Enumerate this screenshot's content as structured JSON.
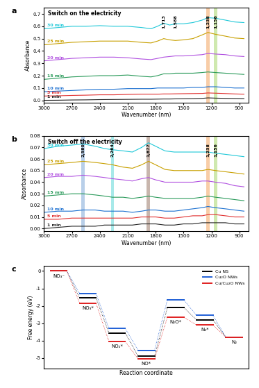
{
  "chart_data": [
    {
      "type": "line",
      "panel_label": "a",
      "title": "Switch on the electricity",
      "x_label": "Wavenumber (nm)",
      "y_label": "Absorbance",
      "xlim": [
        3000,
        800
      ],
      "xticks": [
        3000,
        2700,
        2400,
        2100,
        1800,
        1500,
        1200,
        900
      ],
      "ylim": [
        -0.02,
        0.75
      ],
      "yticks": [
        {
          "value": 0,
          "label": "0.0"
        },
        0.1,
        0.2,
        0.3,
        0.4,
        0.5,
        0.6,
        0.7
      ],
      "x": [
        3000,
        2850,
        2700,
        2550,
        2400,
        2250,
        2100,
        1950,
        1850,
        1780,
        1713,
        1650,
        1588,
        1500,
        1400,
        1300,
        1238,
        1156,
        1050,
        950,
        850
      ],
      "series": [
        {
          "name": "30 min",
          "color": "#1fc8d8",
          "values": [
            0.58,
            0.59,
            0.6,
            0.6,
            0.605,
            0.6,
            0.6,
            0.59,
            0.58,
            0.6,
            0.625,
            0.61,
            0.62,
            0.62,
            0.63,
            0.65,
            0.67,
            0.665,
            0.65,
            0.635,
            0.63
          ]
        },
        {
          "name": "25 min",
          "color": "#c8a000",
          "values": [
            0.45,
            0.46,
            0.47,
            0.475,
            0.48,
            0.48,
            0.48,
            0.47,
            0.465,
            0.48,
            0.5,
            0.49,
            0.485,
            0.49,
            0.5,
            0.53,
            0.55,
            0.535,
            0.52,
            0.505,
            0.5
          ]
        },
        {
          "name": "20 min",
          "color": "#b050e0",
          "values": [
            0.32,
            0.33,
            0.34,
            0.345,
            0.35,
            0.35,
            0.345,
            0.335,
            0.33,
            0.34,
            0.35,
            0.355,
            0.36,
            0.36,
            0.365,
            0.37,
            0.38,
            0.375,
            0.37,
            0.36,
            0.355
          ]
        },
        {
          "name": "15 min",
          "color": "#2a9a5a",
          "values": [
            0.17,
            0.18,
            0.19,
            0.195,
            0.2,
            0.2,
            0.205,
            0.195,
            0.19,
            0.2,
            0.215,
            0.215,
            0.22,
            0.22,
            0.22,
            0.225,
            0.23,
            0.225,
            0.22,
            0.215,
            0.21
          ]
        },
        {
          "name": "10 min",
          "color": "#1a6fd0",
          "values": [
            0.07,
            0.075,
            0.08,
            0.085,
            0.09,
            0.09,
            0.095,
            0.095,
            0.095,
            0.1,
            0.1,
            0.1,
            0.1,
            0.1,
            0.105,
            0.105,
            0.11,
            0.11,
            0.105,
            0.1,
            0.1
          ]
        },
        {
          "name": "5 min",
          "color": "#e03030",
          "values": [
            0.035,
            0.037,
            0.04,
            0.042,
            0.045,
            0.045,
            0.048,
            0.05,
            0.05,
            0.05,
            0.052,
            0.052,
            0.053,
            0.054,
            0.055,
            0.056,
            0.06,
            0.058,
            0.055,
            0.052,
            0.05
          ]
        },
        {
          "name": "1 min",
          "color": "#222222",
          "values": [
            0.0,
            0.001,
            0.003,
            0.004,
            0.006,
            0.007,
            0.008,
            0.009,
            0.009,
            0.01,
            0.011,
            0.011,
            0.012,
            0.013,
            0.014,
            0.016,
            0.02,
            0.018,
            0.016,
            0.015,
            0.014
          ]
        }
      ],
      "bands": [
        {
          "value": 1238,
          "label": "1,238",
          "color": "#f4a460"
        },
        {
          "value": 1156,
          "label": "1,156",
          "color": "#a8d86e"
        }
      ],
      "peak_labels": [
        {
          "value": 1713,
          "label": "1,713"
        },
        {
          "value": 1588,
          "label": "1,588"
        }
      ]
    },
    {
      "type": "line",
      "panel_label": "b",
      "title": "Switch off the electricity",
      "x_label": "Wavenumber (nm)",
      "y_label": "Absorbance",
      "xlim": [
        3000,
        800
      ],
      "xticks": [
        3000,
        2700,
        2400,
        2100,
        1800,
        1500,
        1200,
        900
      ],
      "ylim": [
        -0.002,
        0.08
      ],
      "yticks": [
        {
          "value": 0,
          "label": "0.00"
        },
        {
          "value": 0.01,
          "label": "0.01"
        },
        {
          "value": 0.02,
          "label": "0.02"
        },
        {
          "value": 0.03,
          "label": "0.03"
        },
        {
          "value": 0.04,
          "label": "0.04"
        },
        {
          "value": 0.05,
          "label": "0.05"
        },
        {
          "value": 0.06,
          "label": "0.06"
        },
        {
          "value": 0.07,
          "label": "0.07"
        },
        {
          "value": 0.08,
          "label": "0.08"
        }
      ],
      "x": [
        3000,
        2850,
        2700,
        2580,
        2450,
        2350,
        2264,
        2150,
        2050,
        1950,
        1877,
        1800,
        1700,
        1600,
        1500,
        1400,
        1300,
        1238,
        1156,
        1050,
        950,
        850
      ],
      "series": [
        {
          "name": "30 min",
          "color": "#1fc8d8",
          "values": [
            0.069,
            0.071,
            0.072,
            0.073,
            0.071,
            0.069,
            0.068,
            0.067,
            0.066,
            0.07,
            0.074,
            0.071,
            0.067,
            0.066,
            0.066,
            0.066,
            0.066,
            0.066,
            0.065,
            0.064,
            0.063,
            0.062
          ]
        },
        {
          "name": "25 min",
          "color": "#c8a000",
          "values": [
            0.055,
            0.056,
            0.057,
            0.058,
            0.057,
            0.056,
            0.055,
            0.053,
            0.052,
            0.055,
            0.058,
            0.055,
            0.051,
            0.05,
            0.05,
            0.05,
            0.05,
            0.051,
            0.05,
            0.049,
            0.048,
            0.047
          ]
        },
        {
          "name": "20 min",
          "color": "#b050e0",
          "values": [
            0.044,
            0.045,
            0.045,
            0.046,
            0.045,
            0.044,
            0.043,
            0.042,
            0.041,
            0.043,
            0.044,
            0.042,
            0.04,
            0.04,
            0.04,
            0.04,
            0.041,
            0.041,
            0.04,
            0.039,
            0.037,
            0.036
          ]
        },
        {
          "name": "15 min",
          "color": "#2a9a5a",
          "values": [
            0.028,
            0.029,
            0.03,
            0.03,
            0.029,
            0.028,
            0.027,
            0.027,
            0.026,
            0.027,
            0.028,
            0.027,
            0.026,
            0.026,
            0.026,
            0.026,
            0.027,
            0.028,
            0.027,
            0.026,
            0.025,
            0.024
          ]
        },
        {
          "name": "10 min",
          "color": "#1a6fd0",
          "values": [
            0.014,
            0.015,
            0.015,
            0.016,
            0.016,
            0.015,
            0.015,
            0.015,
            0.014,
            0.015,
            0.016,
            0.016,
            0.015,
            0.015,
            0.016,
            0.017,
            0.018,
            0.019,
            0.018,
            0.017,
            0.016,
            0.015
          ]
        },
        {
          "name": "5 min",
          "color": "#e03030",
          "values": [
            0.008,
            0.008,
            0.009,
            0.009,
            0.009,
            0.009,
            0.009,
            0.009,
            0.009,
            0.01,
            0.01,
            0.01,
            0.009,
            0.009,
            0.01,
            0.011,
            0.011,
            0.012,
            0.012,
            0.011,
            0.01,
            0.01
          ]
        },
        {
          "name": "1 min",
          "color": "#222222",
          "values": [
            0.0,
            0.001,
            0.002,
            0.002,
            0.002,
            0.003,
            0.003,
            0.003,
            0.003,
            0.004,
            0.004,
            0.004,
            0.003,
            0.003,
            0.004,
            0.004,
            0.005,
            0.005,
            0.005,
            0.005,
            0.004,
            0.004
          ]
        }
      ],
      "bands": [
        {
          "value": 2580,
          "label": "2,580",
          "color": "#7fa8d8"
        },
        {
          "value": 2264,
          "label": "2,264",
          "color": "#5fd8d8"
        },
        {
          "value": 1877,
          "label": "1,877",
          "color": "#9c7a6a"
        },
        {
          "value": 1238,
          "label": "1,238",
          "color": "#f4a460"
        },
        {
          "value": 1156,
          "label": "1,156",
          "color": "#a8d86e"
        }
      ]
    },
    {
      "type": "energy_levels",
      "panel_label": "c",
      "x_label": "Reaction coordinate",
      "y_label": "Free energy (eV)",
      "categories": [
        "NO₃⁻",
        "NO₃*",
        "NO₂*",
        "NO*",
        "N₂O*",
        "N₂*",
        "N₂"
      ],
      "ylim": [
        -5.6,
        0.3
      ],
      "yticks": [
        0,
        -1,
        -2,
        -3,
        -4,
        -5
      ],
      "tick_labels": "y",
      "legend": "upper right",
      "series": [
        {
          "name": "Cu NS",
          "color": "#000000",
          "values": [
            0,
            -1.55,
            -3.55,
            -4.9,
            -2.1,
            -2.8,
            -3.8
          ]
        },
        {
          "name": "Cu₂O NWs",
          "color": "#1f5fd6",
          "values": [
            0,
            -1.3,
            -3.3,
            -4.55,
            -1.65,
            -2.55,
            -3.8
          ]
        },
        {
          "name": "Cu/Cu₂O NWs",
          "color": "#e02020",
          "values": [
            0,
            -1.85,
            -4.05,
            -5.05,
            -2.65,
            -3.1,
            -3.8
          ]
        }
      ]
    }
  ]
}
